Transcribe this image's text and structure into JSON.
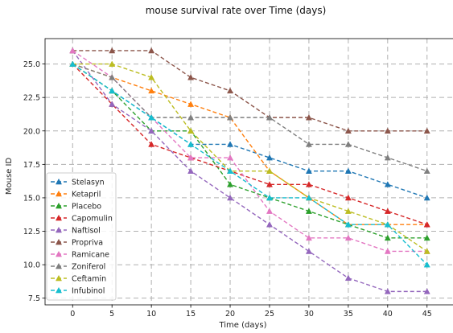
{
  "chart_data": {
    "type": "line",
    "title": "mouse survival rate over Time (days)",
    "xlabel": "Time (days)",
    "ylabel": "Mouse ID",
    "xlim": [
      -3.5,
      48.5
    ],
    "ylim": [
      7.0,
      26.9
    ],
    "x_ticks": [
      0,
      5,
      10,
      15,
      20,
      25,
      30,
      35,
      40,
      45
    ],
    "y_ticks": [
      7.5,
      10.0,
      12.5,
      15.0,
      17.5,
      20.0,
      22.5,
      25.0
    ],
    "x_tick_labels": [
      "0",
      "5",
      "10",
      "15",
      "20",
      "25",
      "30",
      "35",
      "40",
      "45"
    ],
    "y_tick_labels": [
      "7.5",
      "10.0",
      "12.5",
      "15.0",
      "17.5",
      "20.0",
      "22.5",
      "25.0"
    ],
    "grid": true,
    "legend_position": "lower-left",
    "x": [
      0,
      5,
      10,
      15,
      20,
      25,
      30,
      35,
      40,
      45
    ],
    "series": [
      {
        "name": "Stelasyn",
        "color": "#1f77b4",
        "values": [
          25,
          23,
          21,
          19,
          19,
          18,
          17,
          17,
          16,
          15
        ]
      },
      {
        "name": "Ketapril",
        "color": "#ff7f0e",
        "values": [
          25,
          24,
          23,
          22,
          21,
          17,
          15,
          13,
          13,
          13
        ]
      },
      {
        "name": "Placebo",
        "color": "#2ca02c",
        "values": [
          25,
          23,
          20,
          20,
          16,
          15,
          14,
          13,
          12,
          12
        ]
      },
      {
        "name": "Capomulin",
        "color": "#d62728",
        "values": [
          25,
          22,
          19,
          18,
          17,
          16,
          16,
          15,
          14,
          13
        ]
      },
      {
        "name": "Naftisol",
        "color": "#9467bd",
        "values": [
          26,
          22,
          20,
          17,
          15,
          13,
          11,
          9,
          8,
          8
        ]
      },
      {
        "name": "Propriva",
        "color": "#8c564b",
        "values": [
          26,
          26,
          26,
          24,
          23,
          21,
          21,
          20,
          20,
          20
        ]
      },
      {
        "name": "Ramicane",
        "color": "#e377c2",
        "values": [
          26,
          24,
          21,
          18,
          18,
          14,
          12,
          12,
          11,
          11
        ]
      },
      {
        "name": "Zoniferol",
        "color": "#7f7f7f",
        "values": [
          25,
          24,
          21,
          21,
          21,
          21,
          19,
          19,
          18,
          17
        ]
      },
      {
        "name": "Ceftamin",
        "color": "#bcbd22",
        "values": [
          25,
          25,
          24,
          20,
          17,
          17,
          15,
          14,
          13,
          11
        ]
      },
      {
        "name": "Infubinol",
        "color": "#17becf",
        "values": [
          25,
          23,
          21,
          19,
          17,
          15,
          15,
          13,
          13,
          10
        ]
      }
    ]
  }
}
